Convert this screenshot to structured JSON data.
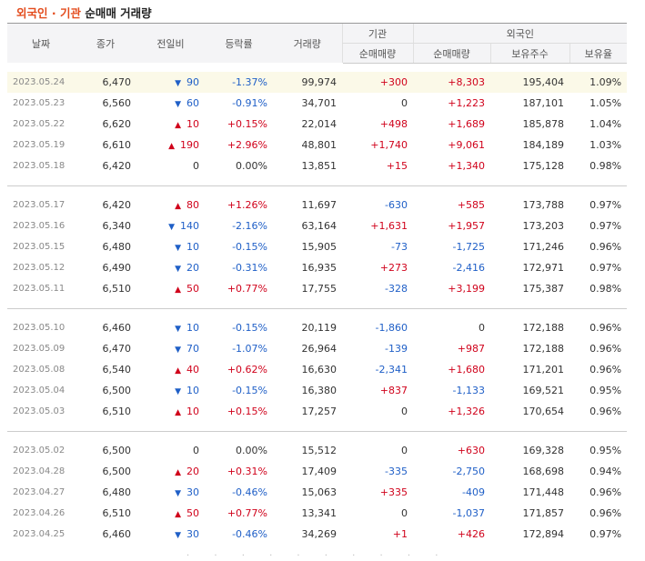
{
  "title": {
    "part1": "외국인 · 기관",
    "part2": "순매매 거래량"
  },
  "headers": {
    "date": "날짜",
    "close": "종가",
    "change": "전일비",
    "rate": "등락률",
    "volume": "거래량",
    "inst_group": "기관",
    "foreign_group": "외국인",
    "inst_net": "순매매량",
    "foreign_net": "순매매량",
    "foreign_hold": "보유주수",
    "foreign_ratio": "보유율"
  },
  "groups": [
    [
      {
        "date": "2023.05.24",
        "close": "6,470",
        "dir": "down",
        "change": "90",
        "rate": "-1.37%",
        "volume": "99,974",
        "inst": "+300",
        "foreign": "+8,303",
        "hold": "195,404",
        "ratio": "1.09%"
      },
      {
        "date": "2023.05.23",
        "close": "6,560",
        "dir": "down",
        "change": "60",
        "rate": "-0.91%",
        "volume": "34,701",
        "inst": "0",
        "foreign": "+1,223",
        "hold": "187,101",
        "ratio": "1.05%"
      },
      {
        "date": "2023.05.22",
        "close": "6,620",
        "dir": "up",
        "change": "10",
        "rate": "+0.15%",
        "volume": "22,014",
        "inst": "+498",
        "foreign": "+1,689",
        "hold": "185,878",
        "ratio": "1.04%"
      },
      {
        "date": "2023.05.19",
        "close": "6,610",
        "dir": "up",
        "change": "190",
        "rate": "+2.96%",
        "volume": "48,801",
        "inst": "+1,740",
        "foreign": "+9,061",
        "hold": "184,189",
        "ratio": "1.03%"
      },
      {
        "date": "2023.05.18",
        "close": "6,420",
        "dir": "flat",
        "change": "0",
        "rate": "0.00%",
        "volume": "13,851",
        "inst": "+15",
        "foreign": "+1,340",
        "hold": "175,128",
        "ratio": "0.98%"
      }
    ],
    [
      {
        "date": "2023.05.17",
        "close": "6,420",
        "dir": "up",
        "change": "80",
        "rate": "+1.26%",
        "volume": "11,697",
        "inst": "-630",
        "foreign": "+585",
        "hold": "173,788",
        "ratio": "0.97%"
      },
      {
        "date": "2023.05.16",
        "close": "6,340",
        "dir": "down",
        "change": "140",
        "rate": "-2.16%",
        "volume": "63,164",
        "inst": "+1,631",
        "foreign": "+1,957",
        "hold": "173,203",
        "ratio": "0.97%"
      },
      {
        "date": "2023.05.15",
        "close": "6,480",
        "dir": "down",
        "change": "10",
        "rate": "-0.15%",
        "volume": "15,905",
        "inst": "-73",
        "foreign": "-1,725",
        "hold": "171,246",
        "ratio": "0.96%"
      },
      {
        "date": "2023.05.12",
        "close": "6,490",
        "dir": "down",
        "change": "20",
        "rate": "-0.31%",
        "volume": "16,935",
        "inst": "+273",
        "foreign": "-2,416",
        "hold": "172,971",
        "ratio": "0.97%"
      },
      {
        "date": "2023.05.11",
        "close": "6,510",
        "dir": "up",
        "change": "50",
        "rate": "+0.77%",
        "volume": "17,755",
        "inst": "-328",
        "foreign": "+3,199",
        "hold": "175,387",
        "ratio": "0.98%"
      }
    ],
    [
      {
        "date": "2023.05.10",
        "close": "6,460",
        "dir": "down",
        "change": "10",
        "rate": "-0.15%",
        "volume": "20,119",
        "inst": "-1,860",
        "foreign": "0",
        "hold": "172,188",
        "ratio": "0.96%"
      },
      {
        "date": "2023.05.09",
        "close": "6,470",
        "dir": "down",
        "change": "70",
        "rate": "-1.07%",
        "volume": "26,964",
        "inst": "-139",
        "foreign": "+987",
        "hold": "172,188",
        "ratio": "0.96%"
      },
      {
        "date": "2023.05.08",
        "close": "6,540",
        "dir": "up",
        "change": "40",
        "rate": "+0.62%",
        "volume": "16,630",
        "inst": "-2,341",
        "foreign": "+1,680",
        "hold": "171,201",
        "ratio": "0.96%"
      },
      {
        "date": "2023.05.04",
        "close": "6,500",
        "dir": "down",
        "change": "10",
        "rate": "-0.15%",
        "volume": "16,380",
        "inst": "+837",
        "foreign": "-1,133",
        "hold": "169,521",
        "ratio": "0.95%"
      },
      {
        "date": "2023.05.03",
        "close": "6,510",
        "dir": "up",
        "change": "10",
        "rate": "+0.15%",
        "volume": "17,257",
        "inst": "0",
        "foreign": "+1,326",
        "hold": "170,654",
        "ratio": "0.96%"
      }
    ],
    [
      {
        "date": "2023.05.02",
        "close": "6,500",
        "dir": "flat",
        "change": "0",
        "rate": "0.00%",
        "volume": "15,512",
        "inst": "0",
        "foreign": "+630",
        "hold": "169,328",
        "ratio": "0.95%"
      },
      {
        "date": "2023.04.28",
        "close": "6,500",
        "dir": "up",
        "change": "20",
        "rate": "+0.31%",
        "volume": "17,409",
        "inst": "-335",
        "foreign": "-2,750",
        "hold": "168,698",
        "ratio": "0.94%"
      },
      {
        "date": "2023.04.27",
        "close": "6,480",
        "dir": "down",
        "change": "30",
        "rate": "-0.46%",
        "volume": "15,063",
        "inst": "+335",
        "foreign": "-409",
        "hold": "171,448",
        "ratio": "0.96%"
      },
      {
        "date": "2023.04.26",
        "close": "6,510",
        "dir": "up",
        "change": "50",
        "rate": "+0.77%",
        "volume": "13,341",
        "inst": "0",
        "foreign": "-1,037",
        "hold": "171,857",
        "ratio": "0.96%"
      },
      {
        "date": "2023.04.25",
        "close": "6,460",
        "dir": "down",
        "change": "30",
        "rate": "-0.46%",
        "volume": "34,269",
        "inst": "+1",
        "foreign": "+426",
        "hold": "172,894",
        "ratio": "0.97%"
      }
    ]
  ],
  "colors": {
    "up": "#d0021b",
    "down": "#1f5fc7",
    "title_accent": "#e34b1c",
    "highlight_row": "#fbf9e8"
  }
}
